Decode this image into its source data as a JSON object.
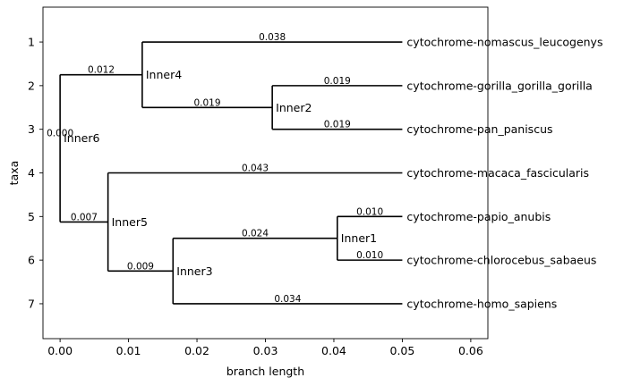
{
  "chart_data": {
    "type": "tree",
    "xlabel": "branch length",
    "ylabel": "taxa",
    "xlim": [
      -0.0025,
      0.0625
    ],
    "ylim": [
      7.8,
      0.2
    ],
    "xticks": [
      0.0,
      0.01,
      0.02,
      0.03,
      0.04,
      0.05,
      0.06
    ],
    "xtick_labels": [
      "0.00",
      "0.01",
      "0.02",
      "0.03",
      "0.04",
      "0.05",
      "0.06"
    ],
    "yticks": [
      1,
      2,
      3,
      4,
      5,
      6,
      7
    ],
    "ytick_labels": [
      "1",
      "2",
      "3",
      "4",
      "5",
      "6",
      "7"
    ],
    "leaves": [
      {
        "name": "cytochrome-nomascus_leucogenys",
        "x": 0.05,
        "y": 1
      },
      {
        "name": "cytochrome-gorilla_gorilla_gorilla",
        "x": 0.05,
        "y": 2
      },
      {
        "name": "cytochrome-pan_paniscus",
        "x": 0.05,
        "y": 3
      },
      {
        "name": "cytochrome-macaca_fascicularis",
        "x": 0.05,
        "y": 4
      },
      {
        "name": "cytochrome-papio_anubis",
        "x": 0.05,
        "y": 5
      },
      {
        "name": "cytochrome-chlorocebus_sabaeus",
        "x": 0.05,
        "y": 6
      },
      {
        "name": "cytochrome-homo_sapiens",
        "x": 0.05,
        "y": 7
      }
    ],
    "internal_nodes": [
      {
        "name": "Inner6",
        "x": 0.0,
        "y": 3.2
      },
      {
        "name": "Inner4",
        "x": 0.012,
        "y": 1.75
      },
      {
        "name": "Inner2",
        "x": 0.031,
        "y": 2.5
      },
      {
        "name": "Inner5",
        "x": 0.007,
        "y": 5.125
      },
      {
        "name": "Inner3",
        "x": 0.0165,
        "y": 6.25
      },
      {
        "name": "Inner1",
        "x": 0.0405,
        "y": 5.5
      }
    ],
    "branches": [
      {
        "from": 0.0,
        "to": 0.0,
        "y": 3.2,
        "length": "0.000"
      },
      {
        "from": 0.0,
        "to": 0.012,
        "y": 1.75,
        "length": "0.012"
      },
      {
        "from": 0.012,
        "to": 0.05,
        "y": 1,
        "length": "0.038"
      },
      {
        "from": 0.012,
        "to": 0.031,
        "y": 2.5,
        "length": "0.019"
      },
      {
        "from": 0.031,
        "to": 0.05,
        "y": 2,
        "length": "0.019"
      },
      {
        "from": 0.031,
        "to": 0.05,
        "y": 3,
        "length": "0.019"
      },
      {
        "from": 0.0,
        "to": 0.007,
        "y": 5.125,
        "length": "0.007"
      },
      {
        "from": 0.007,
        "to": 0.05,
        "y": 4,
        "length": "0.043"
      },
      {
        "from": 0.007,
        "to": 0.0165,
        "y": 6.25,
        "length": "0.009"
      },
      {
        "from": 0.0165,
        "to": 0.0405,
        "y": 5.5,
        "length": "0.024"
      },
      {
        "from": 0.0405,
        "to": 0.05,
        "y": 5,
        "length": "0.010"
      },
      {
        "from": 0.0405,
        "to": 0.05,
        "y": 6,
        "length": "0.010"
      },
      {
        "from": 0.0165,
        "to": 0.05,
        "y": 7,
        "length": "0.034"
      }
    ],
    "verticals": [
      {
        "x": 0.0,
        "y1": 1.75,
        "y2": 5.125
      },
      {
        "x": 0.012,
        "y1": 1,
        "y2": 2.5
      },
      {
        "x": 0.031,
        "y1": 2,
        "y2": 3
      },
      {
        "x": 0.007,
        "y1": 4,
        "y2": 6.25
      },
      {
        "x": 0.0165,
        "y1": 5.5,
        "y2": 7
      },
      {
        "x": 0.0405,
        "y1": 5,
        "y2": 6
      }
    ]
  }
}
